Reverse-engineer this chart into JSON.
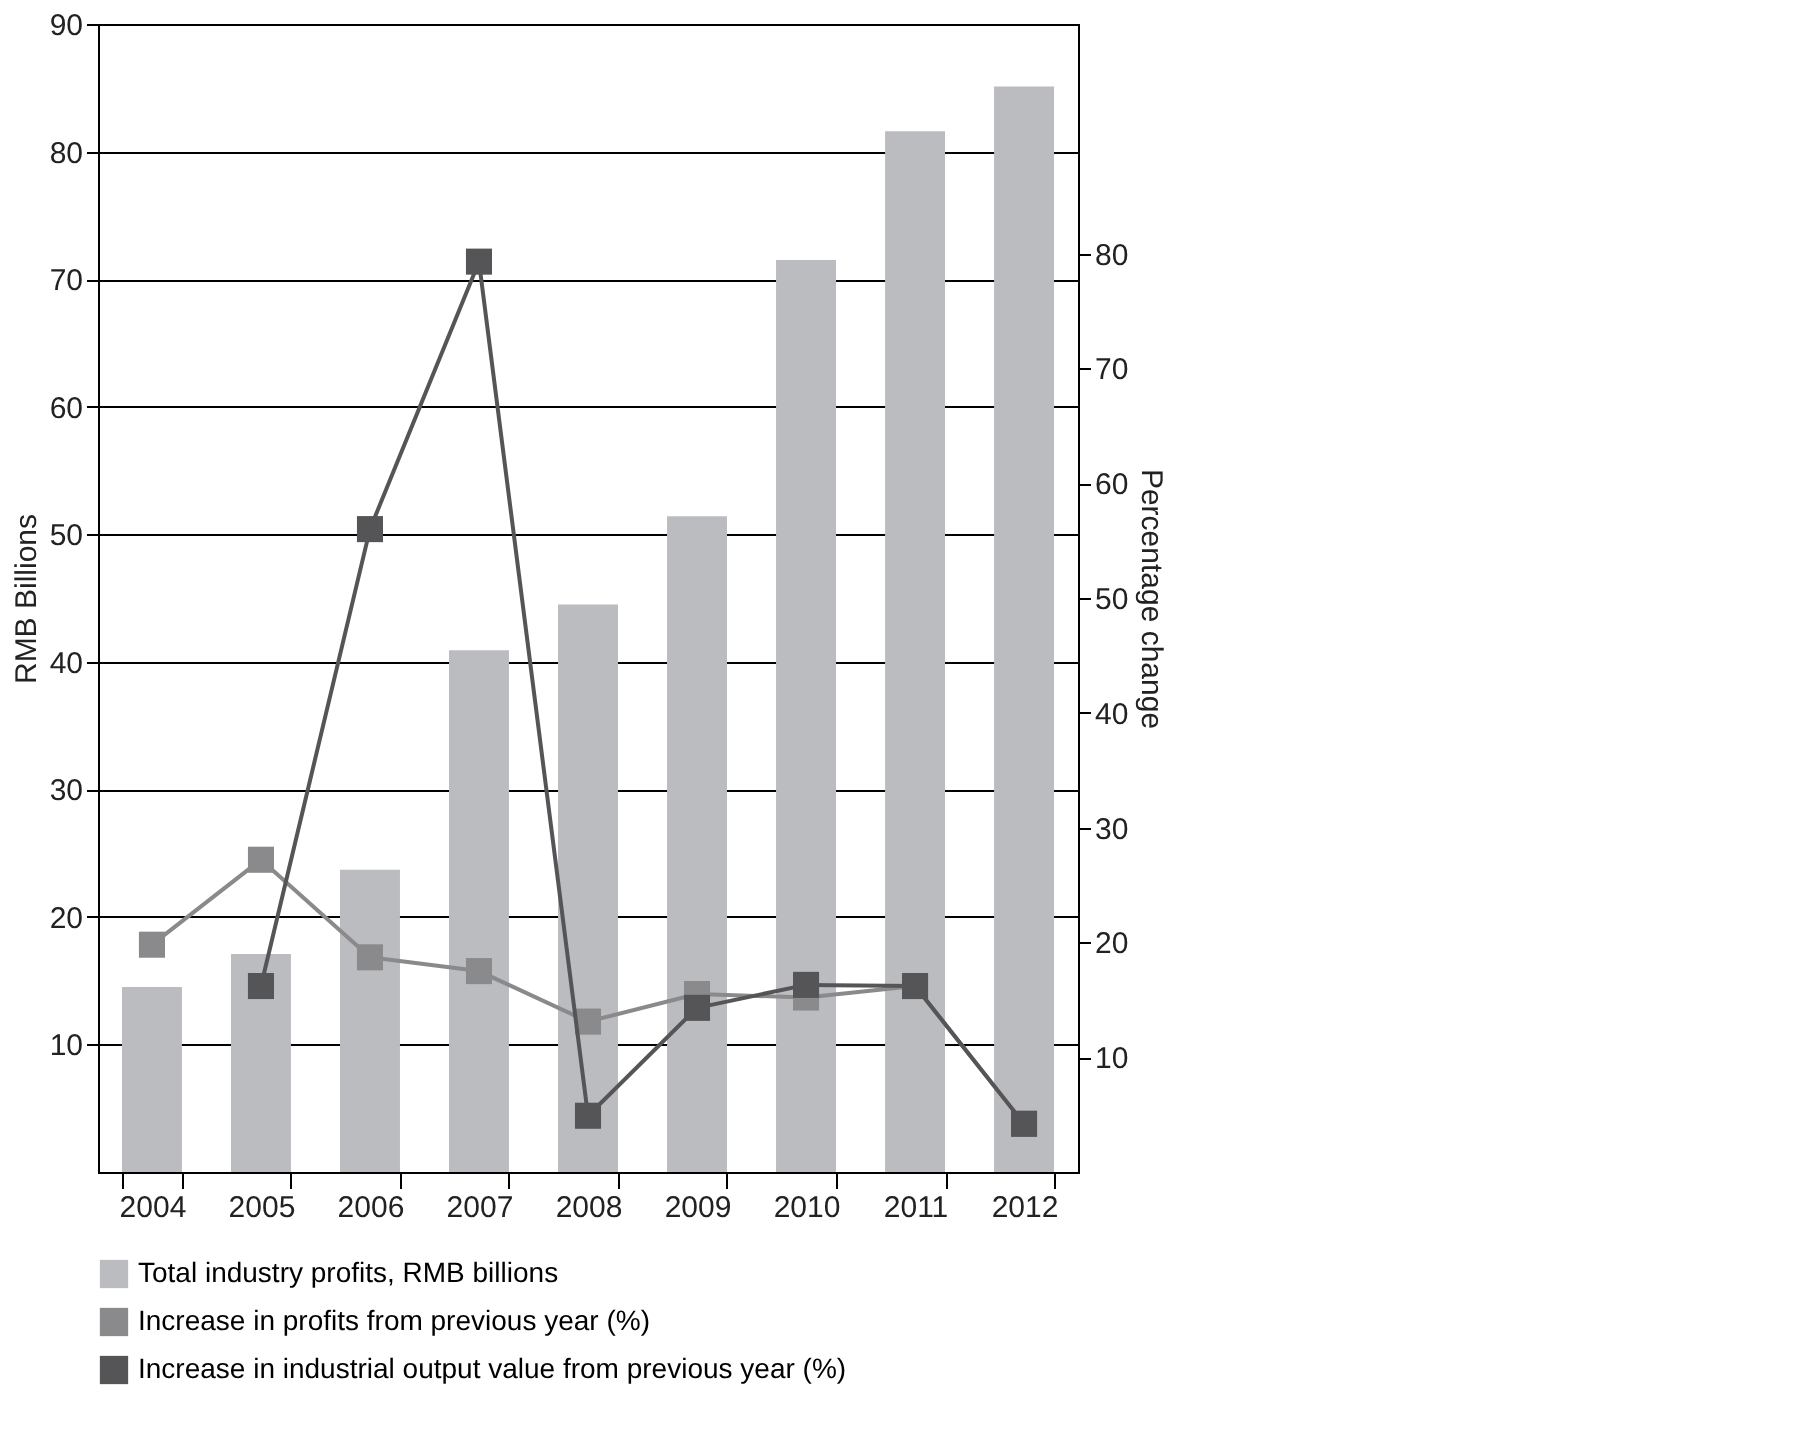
{
  "chart_data": {
    "type": "bar",
    "categories": [
      "2004",
      "2005",
      "2006",
      "2007",
      "2008",
      "2009",
      "2010",
      "2011",
      "2012"
    ],
    "ylabel": "RMB Billions",
    "y2label": "Percentage change",
    "ylim": [
      0,
      90
    ],
    "yticks": [
      10,
      20,
      30,
      40,
      50,
      60,
      70,
      80,
      90
    ],
    "y2lim": [
      0,
      100
    ],
    "y2ticks": [
      10,
      20,
      30,
      40,
      50,
      60,
      70,
      80
    ],
    "grid": "y",
    "legend": "bottom",
    "marker": "square",
    "line_style": "solid",
    "series": [
      {
        "name": "Total industry profits, RMB billions",
        "color": "#bbbcc0",
        "values": [
          14.5,
          17.1,
          23.7,
          40.9,
          44.5,
          51.4,
          71.5,
          81.6,
          85.1
        ]
      },
      {
        "name": "Increase in profits from previous year (%)",
        "type": "line",
        "axis": "y2",
        "color": "#8a8a8c",
        "values": [
          19.8,
          27.2,
          18.7,
          17.5,
          13.1,
          15.5,
          15.2,
          16.2,
          4.2
        ]
      },
      {
        "name": "Increase in industrial output value from previous year (%)",
        "type": "line",
        "axis": "y2",
        "color": "#555558",
        "values": [
          null,
          16.2,
          56.0,
          79.3,
          4.9,
          14.3,
          16.3,
          16.2,
          4.2
        ]
      }
    ]
  }
}
